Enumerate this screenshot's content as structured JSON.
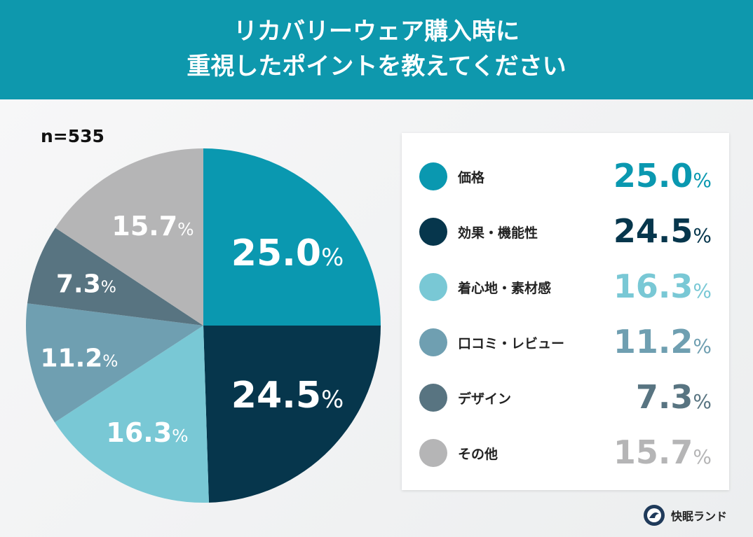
{
  "header": {
    "title_line1": "リカバリーウェア購入時に",
    "title_line2": "重視したポイントを教えてください"
  },
  "sample_size": "n=535",
  "chart_data": {
    "type": "pie",
    "title": "リカバリーウェア購入時に重視したポイントを教えてください",
    "categories": [
      "価格",
      "効果・機能性",
      "着心地・素材感",
      "口コミ・レビュー",
      "デザイン",
      "その他"
    ],
    "values": [
      25.0,
      24.5,
      16.3,
      11.2,
      7.3,
      15.7
    ],
    "labels": [
      "25.0",
      "24.5",
      "16.3",
      "11.2",
      "7.3",
      "15.7"
    ],
    "unit": "%",
    "colors": [
      "#0a98b0",
      "#06364c",
      "#79c8d5",
      "#6f9fb1",
      "#587481",
      "#b5b5b6"
    ],
    "start": "12 o'clock, clockwise",
    "legend": "right"
  },
  "brand": {
    "name": "快眠ランド",
    "logo_icon": "sleeping-person-circle-logo"
  }
}
